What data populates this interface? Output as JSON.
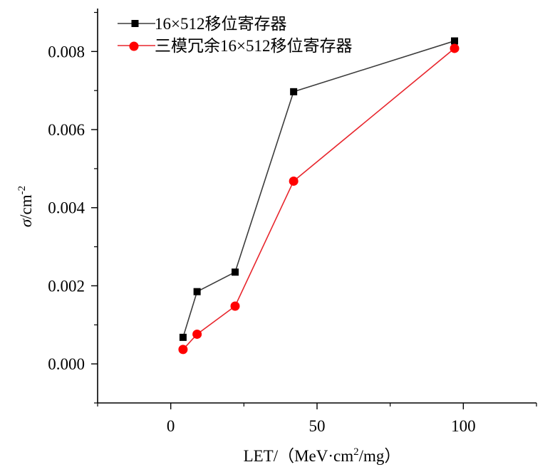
{
  "chart_data": {
    "type": "line",
    "xlabel_main": "LET/（MeV·cm",
    "xlabel_sup": "2",
    "xlabel_tail": "/mg）",
    "ylabel_symbol": "σ",
    "ylabel_unit": "/cm",
    "ylabel_sup": "-2",
    "xlim": [
      -25,
      125
    ],
    "ylim": [
      -0.001,
      0.0091
    ],
    "xticks": [
      0,
      50,
      100
    ],
    "xtick_labels": [
      "0",
      "50",
      "100"
    ],
    "yticks": [
      0.0,
      0.002,
      0.004,
      0.006,
      0.008
    ],
    "ytick_labels": [
      "0.000",
      "0.002",
      "0.004",
      "0.006",
      "0.008"
    ],
    "grid": false,
    "legend_position": "top-left",
    "series": [
      {
        "name": "16×512移位寄存器",
        "color": "#3c3c3c",
        "marker": "square",
        "x": [
          4.2,
          9,
          22,
          42,
          97
        ],
        "y": [
          0.00068,
          0.00185,
          0.00235,
          0.00697,
          0.00827
        ]
      },
      {
        "name": "三模冗余16×512移位寄存器",
        "color": "#e8262d",
        "marker": "circle",
        "x": [
          4.2,
          9,
          22,
          42,
          97
        ],
        "y": [
          0.00037,
          0.00076,
          0.00148,
          0.00468,
          0.00808
        ]
      }
    ]
  }
}
